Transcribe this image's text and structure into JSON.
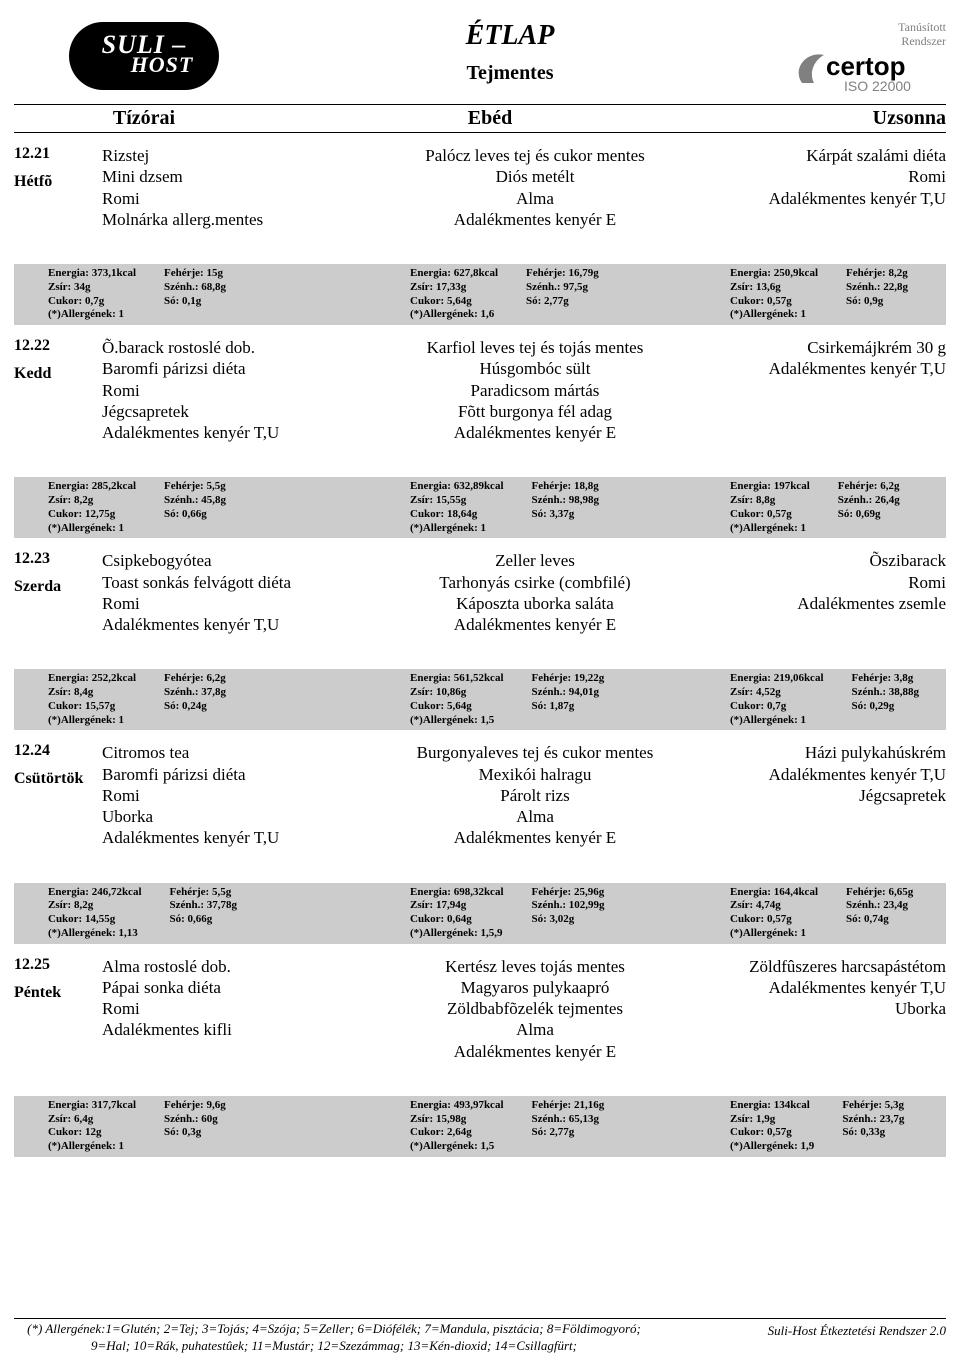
{
  "header": {
    "logo_line1": "SULI –",
    "logo_line2": "HOST",
    "title": "ÉTLAP",
    "subtitle": "Tejmentes",
    "cert_line1": "Tanúsított",
    "cert_line2": "Rendszer",
    "cert_brand": "certop",
    "cert_iso": "ISO 22000",
    "meal_headers": {
      "morning": "Tízórai",
      "lunch": "Ebéd",
      "snack": "Uzsonna"
    }
  },
  "days": [
    {
      "date": "12.21",
      "dname": "Hétfõ",
      "morning": [
        "Rizstej",
        "Mini dzsem",
        "Romi",
        "Molnárka allerg.mentes"
      ],
      "lunch": [
        "Palócz leves tej és cukor mentes",
        "Diós metélt",
        "Alma",
        "Adalékmentes kenyér E"
      ],
      "snack": [
        "Kárpát szalámi  diéta",
        "Romi",
        "Adalékmentes kenyér T,U"
      ],
      "nutrients": {
        "morning": {
          "Energia": "373,1kcal",
          "Zsír": "34g",
          "Cukor": "0,7g",
          "Allergének": "1",
          "Fehérje": "15g",
          "Szénh.": "68,8g",
          "Só": "0,1g"
        },
        "lunch": {
          "Energia": "627,8kcal",
          "Zsír": "17,33g",
          "Cukor": "5,64g",
          "Allergének": "1,6",
          "Fehérje": "16,79g",
          "Szénh.": "97,5g",
          "Só": "2,77g"
        },
        "snack": {
          "Energia": "250,9kcal",
          "Zsír": "13,6g",
          "Cukor": "0,57g",
          "Allergének": "1",
          "Fehérje": "8,2g",
          "Szénh.": "22,8g",
          "Só": "0,9g"
        }
      }
    },
    {
      "date": "12.22",
      "dname": "Kedd",
      "morning": [
        "Õ.barack rostoslé dob.",
        "Baromfi párizsi diéta",
        "Romi",
        "Jégcsapretek",
        "Adalékmentes kenyér T,U"
      ],
      "lunch": [
        "Karfiol leves tej és tojás mentes",
        "Húsgombóc sült",
        "Paradicsom mártás",
        "Fõtt burgonya fél adag",
        "Adalékmentes kenyér E"
      ],
      "snack": [
        "Csirkemájkrém 30 g",
        "Adalékmentes kenyér T,U"
      ],
      "nutrients": {
        "morning": {
          "Energia": "285,2kcal",
          "Zsír": "8,2g",
          "Cukor": "12,75g",
          "Allergének": "1",
          "Fehérje": "5,5g",
          "Szénh.": "45,8g",
          "Só": "0,66g"
        },
        "lunch": {
          "Energia": "632,89kcal",
          "Zsír": "15,55g",
          "Cukor": "18,64g",
          "Allergének": "1",
          "Fehérje": "18,8g",
          "Szénh.": "98,98g",
          "Só": "3,37g"
        },
        "snack": {
          "Energia": "197kcal",
          "Zsír": "8,8g",
          "Cukor": "0,57g",
          "Allergének": "1",
          "Fehérje": "6,2g",
          "Szénh.": "26,4g",
          "Só": "0,69g"
        }
      }
    },
    {
      "date": "12.23",
      "dname": "Szerda",
      "morning": [
        "Csipkebogyótea",
        "Toast sonkás felvágott diéta",
        "Romi",
        "Adalékmentes kenyér T,U"
      ],
      "lunch": [
        "Zeller leves",
        "Tarhonyás csirke (combfilé)",
        "Káposzta uborka saláta",
        "Adalékmentes kenyér E"
      ],
      "snack": [
        "Õszibarack",
        "Romi",
        "Adalékmentes zsemle"
      ],
      "nutrients": {
        "morning": {
          "Energia": "252,2kcal",
          "Zsír": "8,4g",
          "Cukor": "15,57g",
          "Allergének": "1",
          "Fehérje": "6,2g",
          "Szénh.": "37,8g",
          "Só": "0,24g"
        },
        "lunch": {
          "Energia": "561,52kcal",
          "Zsír": "10,86g",
          "Cukor": "5,64g",
          "Allergének": "1,5",
          "Fehérje": "19,22g",
          "Szénh.": "94,01g",
          "Só": "1,87g"
        },
        "snack": {
          "Energia": "219,06kcal",
          "Zsír": "4,52g",
          "Cukor": "0,7g",
          "Allergének": "1",
          "Fehérje": "3,8g",
          "Szénh.": "38,88g",
          "Só": "0,29g"
        }
      }
    },
    {
      "date": "12.24",
      "dname": "Csütörtök",
      "morning": [
        "Citromos tea",
        "Baromfi párizsi diéta",
        "Romi",
        "Uborka",
        "Adalékmentes kenyér T,U"
      ],
      "lunch": [
        "Burgonyaleves tej és cukor mentes",
        "Mexikói halragu",
        "Párolt rizs",
        "Alma",
        "Adalékmentes kenyér E"
      ],
      "snack": [
        "Házi pulykahúskrém",
        "Adalékmentes kenyér T,U",
        "Jégcsapretek"
      ],
      "nutrients": {
        "morning": {
          "Energia": "246,72kcal",
          "Zsír": "8,2g",
          "Cukor": "14,55g",
          "Allergének": "1,13",
          "Fehérje": "5,5g",
          "Szénh.": "37,78g",
          "Só": "0,66g"
        },
        "lunch": {
          "Energia": "698,32kcal",
          "Zsír": "17,94g",
          "Cukor": "0,64g",
          "Allergének": "1,5,9",
          "Fehérje": "25,96g",
          "Szénh.": "102,99g",
          "Só": "3,02g"
        },
        "snack": {
          "Energia": "164,4kcal",
          "Zsír": "4,74g",
          "Cukor": "0,57g",
          "Allergének": "1",
          "Fehérje": "6,65g",
          "Szénh.": "23,4g",
          "Só": "0,74g"
        }
      }
    },
    {
      "date": "12.25",
      "dname": "Péntek",
      "morning": [
        "Alma rostoslé dob.",
        "Pápai sonka diéta",
        "Romi",
        "Adalékmentes kifli"
      ],
      "lunch": [
        "Kertész leves tojás mentes",
        "Magyaros pulykaapró",
        "Zöldbabfõzelék  tejmentes",
        "Alma",
        "Adalékmentes kenyér E"
      ],
      "snack": [
        "Zöldfûszeres harcsapástétom",
        "Adalékmentes kenyér T,U",
        "Uborka"
      ],
      "nutrients": {
        "morning": {
          "Energia": "317,7kcal",
          "Zsír": "6,4g",
          "Cukor": "12g",
          "Allergének": "1",
          "Fehérje": "9,6g",
          "Szénh.": "60g",
          "Só": "0,3g"
        },
        "lunch": {
          "Energia": "493,97kcal",
          "Zsír": "15,98g",
          "Cukor": "2,64g",
          "Allergének": "1,5",
          "Fehérje": "21,16g",
          "Szénh.": "65,13g",
          "Só": "2,77g"
        },
        "snack": {
          "Energia": "134kcal",
          "Zsír": "1,9g",
          "Cukor": "0,57g",
          "Allergének": "1,9",
          "Fehérje": "5,3g",
          "Szénh.": "23,7g",
          "Só": "0,33g"
        }
      }
    }
  ],
  "footer": {
    "allergens": "(*) Allergének:1=Glutén; 2=Tej; 3=Tojás; 4=Szója; 5=Zeller; 6=Diófélék; 7=Mandula, pisztácia; 8=Földimogyoró; 9=Hal; 10=Rák, puhatestûek; 11=Mustár; 12=Szezámmag; 13=Kén-dioxid; 14=Csillagfürt;",
    "system": "Suli-Host Étkeztetési Rendszer 2.0"
  },
  "colors": {
    "background": "#ffffff",
    "text": "#000000",
    "nutrient_bar": "#cccccc",
    "cert_gray": "#808080"
  }
}
